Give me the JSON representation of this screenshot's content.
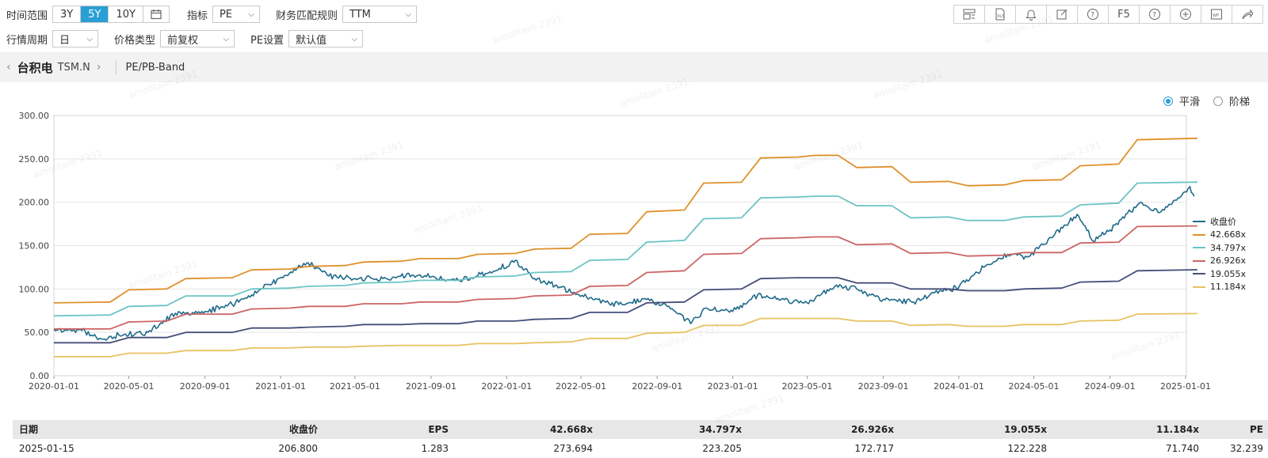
{
  "toolbar": {
    "time_range_label": "时间范围",
    "time_range_options": [
      "3Y",
      "5Y",
      "10Y"
    ],
    "time_range_selected": "5Y",
    "indicator_label": "指标",
    "indicator_value": "PE",
    "fin_rule_label": "财务匹配规则",
    "fin_rule_value": "TTM",
    "period_label": "行情周期",
    "period_value": "日",
    "price_type_label": "价格类型",
    "price_type_value": "前复权",
    "pe_setting_label": "PE设置",
    "pe_setting_value": "默认值",
    "f5_label": "F5"
  },
  "breadcrumb": {
    "stock_name": "台积电",
    "stock_code": "TSM.N",
    "page": "PE/PB-Band"
  },
  "mode": {
    "smooth_label": "平滑",
    "step_label": "阶梯",
    "selected": "smooth"
  },
  "watermark": "amolitam 2391",
  "colors": {
    "accent": "#2a9fd6",
    "price": "#1f6a8a",
    "band_42": "#e0902a",
    "band_34": "#6cc4c4",
    "band_26": "#cc6464",
    "band_19": "#454e78",
    "band_11": "#e8c260"
  },
  "chart_data": {
    "type": "line",
    "y_ticks": [
      "0.00",
      "50.00",
      "100.00",
      "150.00",
      "200.00",
      "250.00",
      "300.00"
    ],
    "ylim": [
      0,
      300
    ],
    "x_ticks": [
      "2020-01-01",
      "2020-05-01",
      "2020-09-01",
      "2021-01-01",
      "2021-05-01",
      "2021-09-01",
      "2022-01-01",
      "2022-05-01",
      "2022-09-01",
      "2023-01-01",
      "2023-05-01",
      "2023-09-01",
      "2024-01-01",
      "2024-05-01",
      "2024-09-01",
      "2025-01-01"
    ],
    "grid": true,
    "legend_position": "right",
    "series": [
      {
        "name": "收盘价",
        "color": "#1f6a8a",
        "points": [
          [
            "2020-01-01",
            53
          ],
          [
            "2020-02-15",
            52
          ],
          [
            "2020-03-20",
            42
          ],
          [
            "2020-04-15",
            47
          ],
          [
            "2020-06-01",
            50
          ],
          [
            "2020-07-15",
            72
          ],
          [
            "2020-09-01",
            74
          ],
          [
            "2020-10-15",
            82
          ],
          [
            "2020-12-01",
            100
          ],
          [
            "2021-01-15",
            118
          ],
          [
            "2021-02-15",
            130
          ],
          [
            "2021-03-20",
            115
          ],
          [
            "2021-05-01",
            112
          ],
          [
            "2021-06-15",
            112
          ],
          [
            "2021-08-01",
            116
          ],
          [
            "2021-09-01",
            114
          ],
          [
            "2021-10-15",
            110
          ],
          [
            "2021-11-15",
            115
          ],
          [
            "2021-12-10",
            120
          ],
          [
            "2022-01-15",
            133
          ],
          [
            "2022-02-15",
            112
          ],
          [
            "2022-03-20",
            104
          ],
          [
            "2022-04-20",
            96
          ],
          [
            "2022-05-20",
            88
          ],
          [
            "2022-07-01",
            82
          ],
          [
            "2022-08-15",
            88
          ],
          [
            "2022-09-15",
            82
          ],
          [
            "2022-10-25",
            60
          ],
          [
            "2022-11-20",
            78
          ],
          [
            "2023-01-01",
            74
          ],
          [
            "2023-02-10",
            93
          ],
          [
            "2023-03-20",
            88
          ],
          [
            "2023-05-01",
            84
          ],
          [
            "2023-06-15",
            103
          ],
          [
            "2023-07-20",
            100
          ],
          [
            "2023-09-01",
            88
          ],
          [
            "2023-10-20",
            85
          ],
          [
            "2023-12-01",
            98
          ],
          [
            "2024-01-01",
            102
          ],
          [
            "2024-02-10",
            125
          ],
          [
            "2024-03-20",
            140
          ],
          [
            "2024-04-20",
            137
          ],
          [
            "2024-06-01",
            160
          ],
          [
            "2024-07-10",
            186
          ],
          [
            "2024-08-05",
            155
          ],
          [
            "2024-09-01",
            168
          ],
          [
            "2024-10-20",
            200
          ],
          [
            "2024-11-20",
            188
          ],
          [
            "2024-12-20",
            205
          ],
          [
            "2025-01-08",
            218
          ],
          [
            "2025-01-15",
            206.8
          ]
        ]
      },
      {
        "name": "42.668x",
        "color": "#e0902a",
        "points": [
          [
            "2020-01-01",
            84
          ],
          [
            "2020-04-01",
            85
          ],
          [
            "2020-05-01",
            99
          ],
          [
            "2020-07-01",
            100
          ],
          [
            "2020-08-01",
            112
          ],
          [
            "2020-10-15",
            113
          ],
          [
            "2020-11-15",
            122
          ],
          [
            "2021-01-15",
            123
          ],
          [
            "2021-02-15",
            126
          ],
          [
            "2021-04-15",
            127
          ],
          [
            "2021-05-15",
            131
          ],
          [
            "2021-07-15",
            132
          ],
          [
            "2021-08-15",
            135
          ],
          [
            "2021-10-15",
            135
          ],
          [
            "2021-11-15",
            140
          ],
          [
            "2022-01-15",
            141
          ],
          [
            "2022-02-15",
            146
          ],
          [
            "2022-04-15",
            147
          ],
          [
            "2022-05-15",
            163
          ],
          [
            "2022-07-15",
            164
          ],
          [
            "2022-08-15",
            189
          ],
          [
            "2022-10-15",
            191
          ],
          [
            "2022-11-15",
            222
          ],
          [
            "2023-01-15",
            223
          ],
          [
            "2023-02-15",
            251
          ],
          [
            "2023-04-15",
            252
          ],
          [
            "2023-05-15",
            254
          ],
          [
            "2023-06-20",
            254
          ],
          [
            "2023-07-20",
            240
          ],
          [
            "2023-09-15",
            241
          ],
          [
            "2023-10-15",
            223
          ],
          [
            "2023-12-15",
            224
          ],
          [
            "2024-01-15",
            219
          ],
          [
            "2024-03-15",
            220
          ],
          [
            "2024-04-15",
            225
          ],
          [
            "2024-06-15",
            226
          ],
          [
            "2024-07-15",
            242
          ],
          [
            "2024-09-15",
            244
          ],
          [
            "2024-10-15",
            272
          ],
          [
            "2025-01-20",
            273.7
          ]
        ]
      },
      {
        "name": "34.797x",
        "color": "#6cc4c4",
        "points": [
          [
            "2020-01-01",
            69
          ],
          [
            "2020-04-01",
            70
          ],
          [
            "2020-05-01",
            80
          ],
          [
            "2020-07-01",
            81
          ],
          [
            "2020-08-01",
            92
          ],
          [
            "2020-10-15",
            92
          ],
          [
            "2020-11-15",
            100
          ],
          [
            "2021-01-15",
            101
          ],
          [
            "2021-02-15",
            103
          ],
          [
            "2021-04-15",
            104
          ],
          [
            "2021-05-15",
            107
          ],
          [
            "2021-07-15",
            108
          ],
          [
            "2021-08-15",
            110
          ],
          [
            "2021-10-15",
            110
          ],
          [
            "2021-11-15",
            114
          ],
          [
            "2022-01-15",
            115
          ],
          [
            "2022-02-15",
            119
          ],
          [
            "2022-04-15",
            120
          ],
          [
            "2022-05-15",
            133
          ],
          [
            "2022-07-15",
            134
          ],
          [
            "2022-08-15",
            154
          ],
          [
            "2022-10-15",
            156
          ],
          [
            "2022-11-15",
            181
          ],
          [
            "2023-01-15",
            182
          ],
          [
            "2023-02-15",
            205
          ],
          [
            "2023-04-15",
            206
          ],
          [
            "2023-05-15",
            207
          ],
          [
            "2023-06-20",
            207
          ],
          [
            "2023-07-20",
            196
          ],
          [
            "2023-09-15",
            196
          ],
          [
            "2023-10-15",
            182
          ],
          [
            "2023-12-15",
            183
          ],
          [
            "2024-01-15",
            179
          ],
          [
            "2024-03-15",
            179
          ],
          [
            "2024-04-15",
            183
          ],
          [
            "2024-06-15",
            184
          ],
          [
            "2024-07-15",
            197
          ],
          [
            "2024-09-15",
            199
          ],
          [
            "2024-10-15",
            222
          ],
          [
            "2025-01-20",
            223.2
          ]
        ]
      },
      {
        "name": "26.926x",
        "color": "#cc6464",
        "points": [
          [
            "2020-01-01",
            54
          ],
          [
            "2020-04-01",
            54
          ],
          [
            "2020-05-01",
            62
          ],
          [
            "2020-07-01",
            63
          ],
          [
            "2020-08-01",
            71
          ],
          [
            "2020-10-15",
            71
          ],
          [
            "2020-11-15",
            77
          ],
          [
            "2021-01-15",
            78
          ],
          [
            "2021-02-15",
            80
          ],
          [
            "2021-04-15",
            80
          ],
          [
            "2021-05-15",
            83
          ],
          [
            "2021-07-15",
            83
          ],
          [
            "2021-08-15",
            85
          ],
          [
            "2021-10-15",
            85
          ],
          [
            "2021-11-15",
            88
          ],
          [
            "2022-01-15",
            89
          ],
          [
            "2022-02-15",
            92
          ],
          [
            "2022-04-15",
            93
          ],
          [
            "2022-05-15",
            103
          ],
          [
            "2022-07-15",
            104
          ],
          [
            "2022-08-15",
            119
          ],
          [
            "2022-10-15",
            121
          ],
          [
            "2022-11-15",
            140
          ],
          [
            "2023-01-15",
            141
          ],
          [
            "2023-02-15",
            158
          ],
          [
            "2023-04-15",
            159
          ],
          [
            "2023-05-15",
            160
          ],
          [
            "2023-06-20",
            160
          ],
          [
            "2023-07-20",
            151
          ],
          [
            "2023-09-15",
            152
          ],
          [
            "2023-10-15",
            141
          ],
          [
            "2023-12-15",
            142
          ],
          [
            "2024-01-15",
            138
          ],
          [
            "2024-03-15",
            139
          ],
          [
            "2024-04-15",
            142
          ],
          [
            "2024-06-15",
            142
          ],
          [
            "2024-07-15",
            153
          ],
          [
            "2024-09-15",
            154
          ],
          [
            "2024-10-15",
            172
          ],
          [
            "2025-01-20",
            172.7
          ]
        ]
      },
      {
        "name": "19.055x",
        "color": "#454e78",
        "points": [
          [
            "2020-01-01",
            38
          ],
          [
            "2020-04-01",
            38
          ],
          [
            "2020-05-01",
            44
          ],
          [
            "2020-07-01",
            44
          ],
          [
            "2020-08-01",
            50
          ],
          [
            "2020-10-15",
            50
          ],
          [
            "2020-11-15",
            55
          ],
          [
            "2021-01-15",
            55
          ],
          [
            "2021-02-15",
            56
          ],
          [
            "2021-04-15",
            57
          ],
          [
            "2021-05-15",
            59
          ],
          [
            "2021-07-15",
            59
          ],
          [
            "2021-08-15",
            60
          ],
          [
            "2021-10-15",
            60
          ],
          [
            "2021-11-15",
            63
          ],
          [
            "2022-01-15",
            63
          ],
          [
            "2022-02-15",
            65
          ],
          [
            "2022-04-15",
            66
          ],
          [
            "2022-05-15",
            73
          ],
          [
            "2022-07-15",
            73
          ],
          [
            "2022-08-15",
            84
          ],
          [
            "2022-10-15",
            85
          ],
          [
            "2022-11-15",
            99
          ],
          [
            "2023-01-15",
            100
          ],
          [
            "2023-02-15",
            112
          ],
          [
            "2023-04-15",
            113
          ],
          [
            "2023-05-15",
            113
          ],
          [
            "2023-06-20",
            113
          ],
          [
            "2023-07-20",
            107
          ],
          [
            "2023-09-15",
            107
          ],
          [
            "2023-10-15",
            100
          ],
          [
            "2023-12-15",
            100
          ],
          [
            "2024-01-15",
            98
          ],
          [
            "2024-03-15",
            98
          ],
          [
            "2024-04-15",
            100
          ],
          [
            "2024-06-15",
            101
          ],
          [
            "2024-07-15",
            108
          ],
          [
            "2024-09-15",
            109
          ],
          [
            "2024-10-15",
            121
          ],
          [
            "2025-01-20",
            122.2
          ]
        ]
      },
      {
        "name": "11.184x",
        "color": "#e8c260",
        "points": [
          [
            "2020-01-01",
            22
          ],
          [
            "2020-04-01",
            22
          ],
          [
            "2020-05-01",
            26
          ],
          [
            "2020-07-01",
            26
          ],
          [
            "2020-08-01",
            29
          ],
          [
            "2020-10-15",
            29
          ],
          [
            "2020-11-15",
            32
          ],
          [
            "2021-01-15",
            32
          ],
          [
            "2021-02-15",
            33
          ],
          [
            "2021-04-15",
            33
          ],
          [
            "2021-05-15",
            34
          ],
          [
            "2021-07-15",
            35
          ],
          [
            "2021-08-15",
            35
          ],
          [
            "2021-10-15",
            35
          ],
          [
            "2021-11-15",
            37
          ],
          [
            "2022-01-15",
            37
          ],
          [
            "2022-02-15",
            38
          ],
          [
            "2022-04-15",
            39
          ],
          [
            "2022-05-15",
            43
          ],
          [
            "2022-07-15",
            43
          ],
          [
            "2022-08-15",
            49
          ],
          [
            "2022-10-15",
            50
          ],
          [
            "2022-11-15",
            58
          ],
          [
            "2023-01-15",
            58
          ],
          [
            "2023-02-15",
            66
          ],
          [
            "2023-04-15",
            66
          ],
          [
            "2023-05-15",
            66
          ],
          [
            "2023-06-20",
            66
          ],
          [
            "2023-07-20",
            63
          ],
          [
            "2023-09-15",
            63
          ],
          [
            "2023-10-15",
            58
          ],
          [
            "2023-12-15",
            59
          ],
          [
            "2024-01-15",
            57
          ],
          [
            "2024-03-15",
            57
          ],
          [
            "2024-04-15",
            59
          ],
          [
            "2024-06-15",
            59
          ],
          [
            "2024-07-15",
            63
          ],
          [
            "2024-09-15",
            64
          ],
          [
            "2024-10-15",
            71
          ],
          [
            "2025-01-20",
            71.7
          ]
        ]
      }
    ]
  },
  "table": {
    "headers": [
      "日期",
      "收盘价",
      "EPS",
      "42.668x",
      "34.797x",
      "26.926x",
      "19.055x",
      "11.184x",
      "PE"
    ],
    "row": [
      "2025-01-15",
      "206.800",
      "1.283",
      "273.694",
      "223.205",
      "172.717",
      "122.228",
      "71.740",
      "32.239"
    ]
  }
}
